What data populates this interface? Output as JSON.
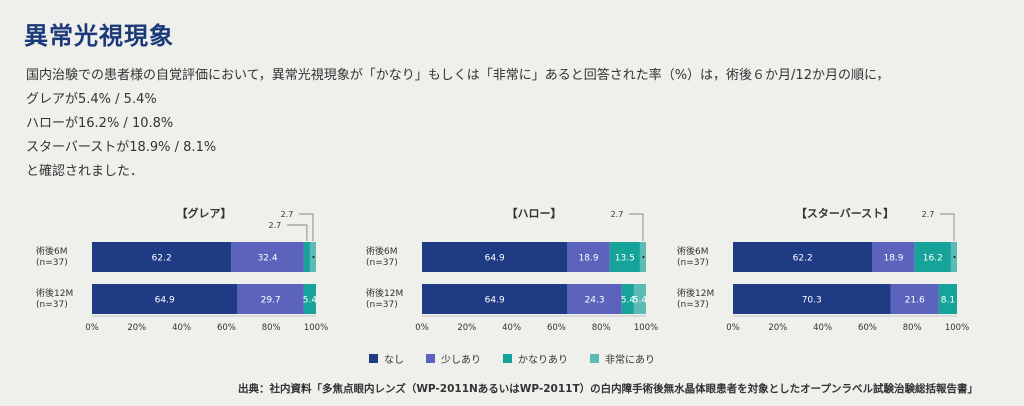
{
  "page": {
    "title": "異常光視現象",
    "description": [
      "国内治験での患者様の自覚評価において，異常光視現象が「かなり」もしくは「非常に」あると回答された率（%）は，術後６か月/12か月の順に，",
      "グレアが5.4% / 5.4%",
      "ハローが16.2% / 10.8%",
      "スターバーストが18.9% / 8.1%",
      "と確認されました．"
    ],
    "source": "出典：社内資料「多焦点眼内レンズ（WP-2011NあるいはWP-2011T）の白内障手術後無水晶体眼患者を対象としたオープンラベル試験治験総括報告書」"
  },
  "legend": [
    {
      "label": "なし",
      "color": "#1f3b83"
    },
    {
      "label": "少しあり",
      "color": "#5b63bd"
    },
    {
      "label": "かなりあり",
      "color": "#16a39a"
    },
    {
      "label": "非常にあり",
      "color": "#5cbcb5"
    }
  ],
  "chart_data": [
    {
      "type": "bar",
      "orientation": "horizontal",
      "stacked": true,
      "title": "【グレア】",
      "categories": [
        "術後6M\n(n=37)",
        "術後12M\n(n=37)"
      ],
      "category_lines": [
        [
          "術後6M",
          "(n=37)"
        ],
        [
          "術後12M",
          "(n=37)"
        ]
      ],
      "series": [
        {
          "name": "なし",
          "values": [
            62.2,
            64.9
          ]
        },
        {
          "name": "少しあり",
          "values": [
            32.4,
            29.7
          ]
        },
        {
          "name": "かなりあり",
          "values": [
            2.7,
            5.4
          ]
        },
        {
          "name": "非常にあり",
          "values": [
            2.7,
            0
          ]
        }
      ],
      "data_labels": [
        [
          "62.2",
          "32.4",
          "",
          ""
        ],
        [
          "64.9",
          "29.7",
          "5.4",
          ""
        ]
      ],
      "callouts": [
        "2.7",
        "2.7"
      ],
      "xlim": [
        0,
        100
      ],
      "xticks": [
        "0%",
        "20%",
        "40%",
        "60%",
        "80%",
        "100%"
      ],
      "grid": false
    },
    {
      "type": "bar",
      "orientation": "horizontal",
      "stacked": true,
      "title": "【ハロー】",
      "categories": [
        "術後6M\n(n=37)",
        "術後12M\n(n=37)"
      ],
      "category_lines": [
        [
          "術後6M",
          "(n=37)"
        ],
        [
          "術後12M",
          "(n=37)"
        ]
      ],
      "series": [
        {
          "name": "なし",
          "values": [
            64.9,
            64.9
          ]
        },
        {
          "name": "少しあり",
          "values": [
            18.9,
            24.3
          ]
        },
        {
          "name": "かなりあり",
          "values": [
            13.5,
            5.4
          ]
        },
        {
          "name": "非常にあり",
          "values": [
            2.7,
            5.4
          ]
        }
      ],
      "data_labels": [
        [
          "64.9",
          "18.9",
          "13.5",
          ""
        ],
        [
          "64.9",
          "24.3",
          "5.4",
          "5.4"
        ]
      ],
      "callouts": [
        "2.7"
      ],
      "xlim": [
        0,
        100
      ],
      "xticks": [
        "0%",
        "20%",
        "40%",
        "60%",
        "80%",
        "100%"
      ],
      "grid": false
    },
    {
      "type": "bar",
      "orientation": "horizontal",
      "stacked": true,
      "title": "【スターバースト】",
      "categories": [
        "術後6M\n(n=37)",
        "術後12M\n(n=37)"
      ],
      "category_lines": [
        [
          "術後6M",
          "(n=37)"
        ],
        [
          "術後12M",
          "(n=37)"
        ]
      ],
      "series": [
        {
          "name": "なし",
          "values": [
            62.2,
            70.3
          ]
        },
        {
          "name": "少しあり",
          "values": [
            18.9,
            21.6
          ]
        },
        {
          "name": "かなりあり",
          "values": [
            16.2,
            8.1
          ]
        },
        {
          "name": "非常にあり",
          "values": [
            2.7,
            0
          ]
        }
      ],
      "data_labels": [
        [
          "62.2",
          "18.9",
          "16.2",
          ""
        ],
        [
          "70.3",
          "21.6",
          "8.1",
          ""
        ]
      ],
      "callouts": [
        "2.7"
      ],
      "xlim": [
        0,
        100
      ],
      "xticks": [
        "0%",
        "20%",
        "40%",
        "60%",
        "80%",
        "100%"
      ],
      "grid": false
    }
  ]
}
